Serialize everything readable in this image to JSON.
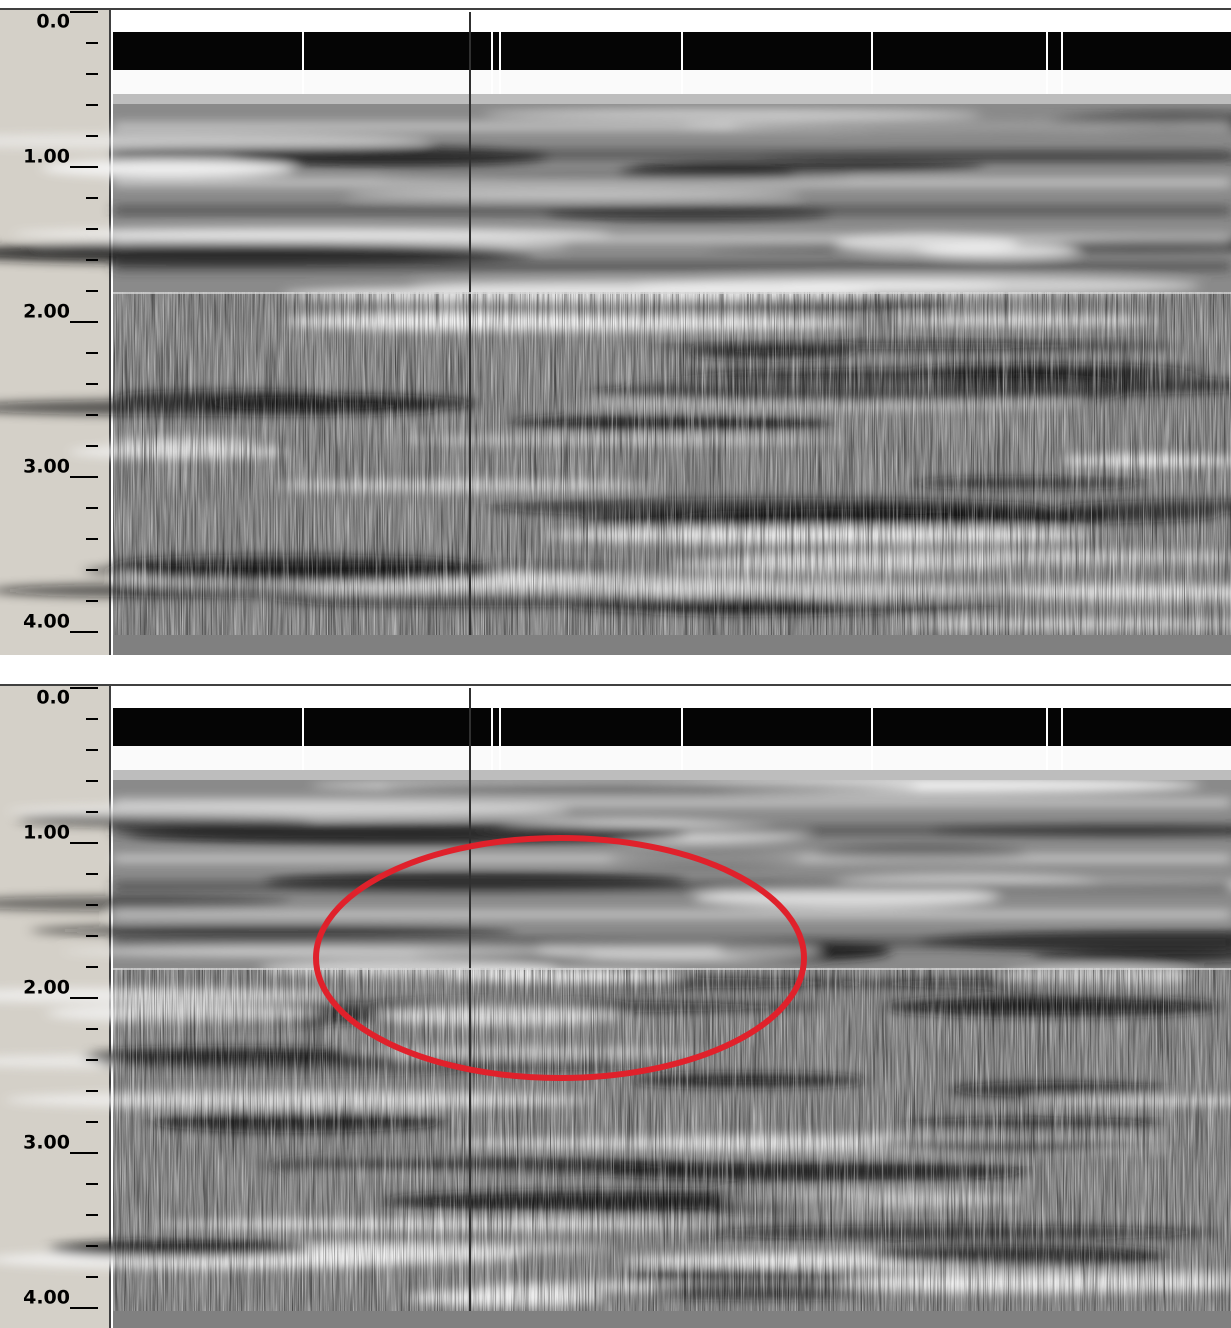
{
  "panels": [
    {
      "yticks": [
        {
          "value": 0,
          "label": "0.0"
        },
        {
          "value": 1,
          "label": "1.00"
        },
        {
          "value": 2,
          "label": "2.00"
        },
        {
          "value": 3,
          "label": "3.00"
        },
        {
          "value": 4,
          "label": "4.00"
        }
      ]
    },
    {
      "yticks": [
        {
          "value": 0,
          "label": "0.0"
        },
        {
          "value": 1,
          "label": "1.00"
        },
        {
          "value": 2,
          "label": "2.00"
        },
        {
          "value": 3,
          "label": "3.00"
        },
        {
          "value": 4,
          "label": "4.00"
        }
      ]
    }
  ]
}
